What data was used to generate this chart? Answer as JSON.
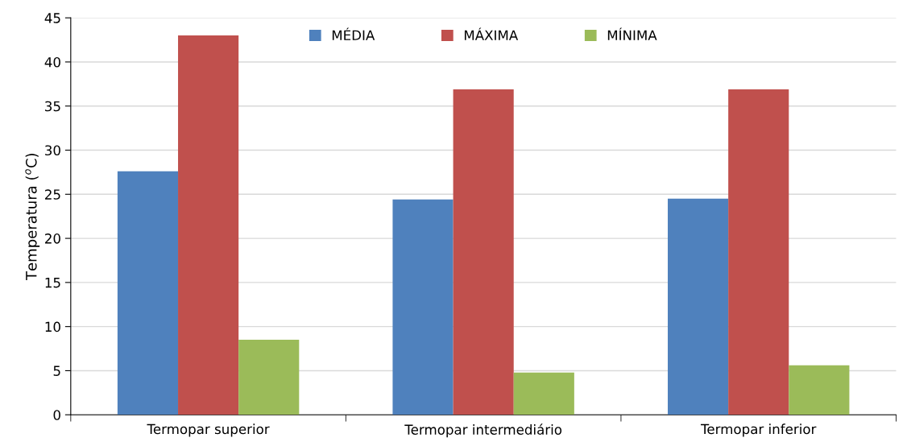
{
  "chart_data": {
    "type": "bar",
    "ylabel": "Temperatura ($^{o}$C)",
    "categories": [
      "Termopar superior",
      "Termopar intermediário",
      "Termopar inferior"
    ],
    "series": [
      {
        "name": "MÉDIA",
        "color": "#4f81bd",
        "values": [
          27.6,
          24.4,
          24.5
        ]
      },
      {
        "name": "MÁXIMA",
        "color": "#c0504d",
        "values": [
          43.0,
          36.9,
          36.9
        ]
      },
      {
        "name": "MÍNIMA",
        "color": "#9bbb59",
        "values": [
          8.5,
          4.8,
          5.6
        ]
      }
    ],
    "ylim": [
      0,
      45
    ],
    "yticks": [
      0,
      5,
      10,
      15,
      20,
      25,
      30,
      35,
      40,
      45
    ],
    "grid": "y",
    "legend": "top"
  }
}
